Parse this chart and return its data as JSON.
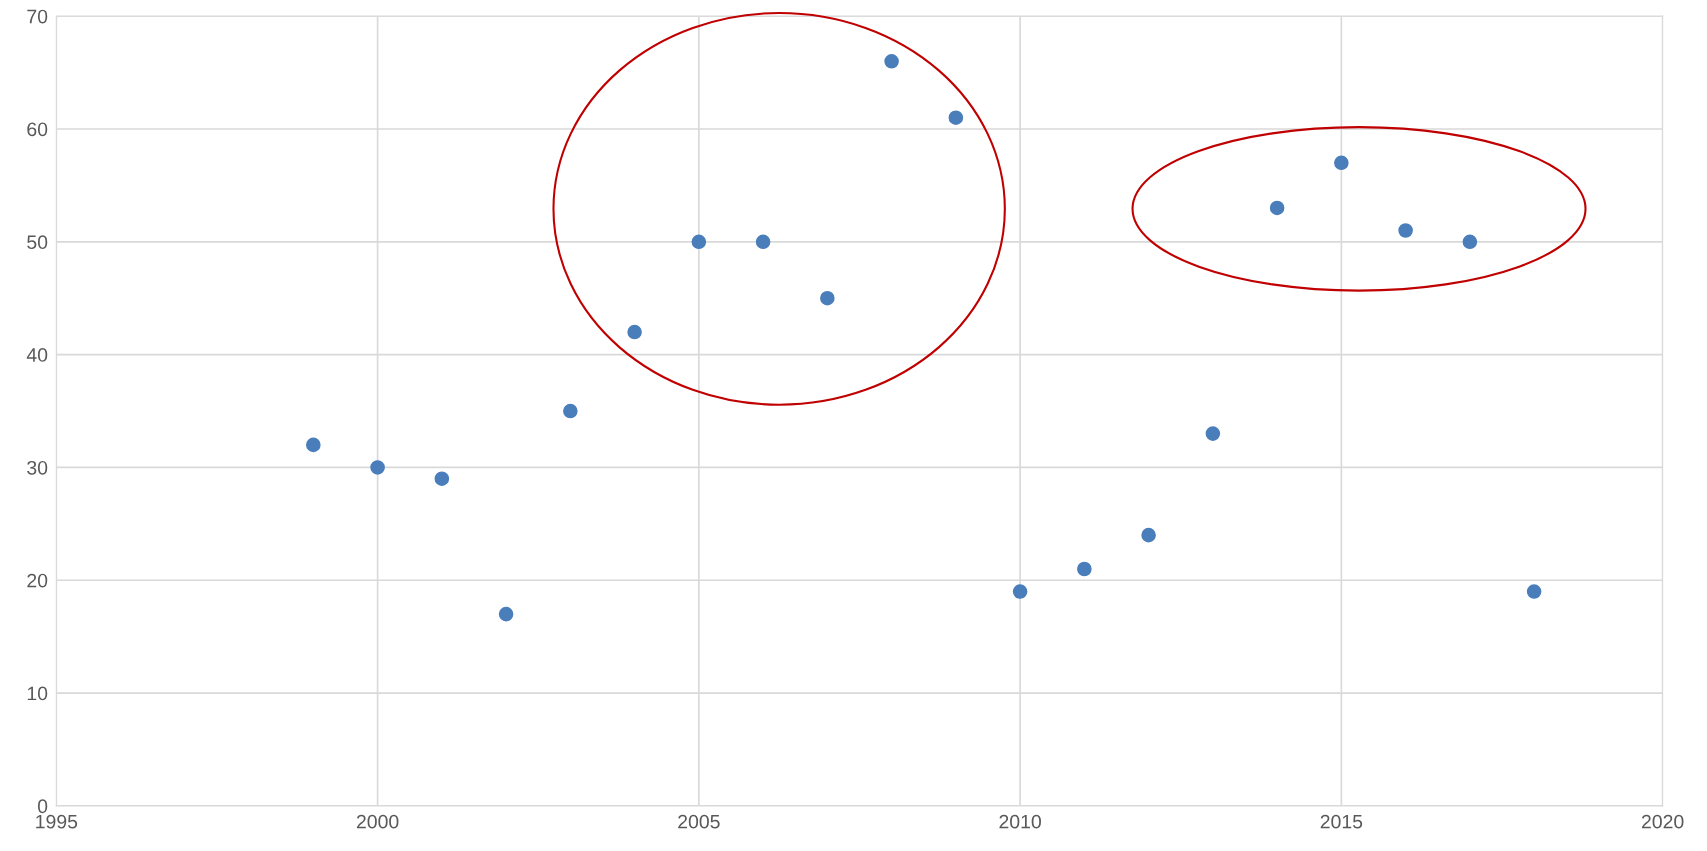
{
  "chart_data": {
    "type": "scatter",
    "x": [
      1999,
      2000,
      2001,
      2002,
      2003,
      2004,
      2005,
      2006,
      2007,
      2008,
      2009,
      2010,
      2011,
      2012,
      2013,
      2014,
      2015,
      2016,
      2017,
      2018
    ],
    "values": [
      32,
      30,
      29,
      17,
      35,
      42,
      50,
      50,
      45,
      66,
      61,
      19,
      21,
      24,
      33,
      53,
      57,
      51,
      50,
      19
    ],
    "color": "#4a7ebb",
    "marker": "circle",
    "grid": true,
    "xlim": [
      1995,
      2020
    ],
    "xticks": [
      1995,
      2000,
      2005,
      2010,
      2015,
      2020
    ],
    "ylim": [
      0,
      70
    ],
    "yticks": [
      0,
      10,
      20,
      30,
      40,
      50,
      60,
      70
    ]
  }
}
